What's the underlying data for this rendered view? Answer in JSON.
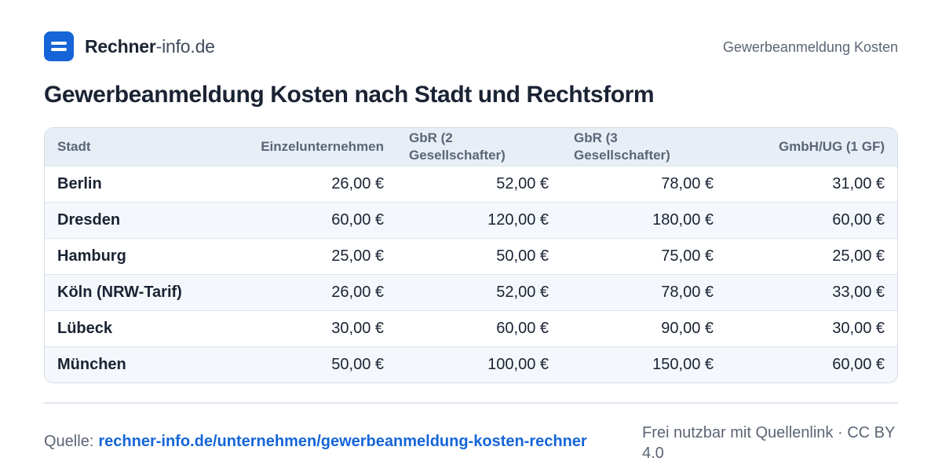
{
  "header": {
    "logo_strong": "Rechner",
    "logo_light": "-info.de",
    "page_label": "Gewerbeanmeldung Kosten"
  },
  "title": "Gewerbeanmeldung Kosten nach Stadt und Rechtsform",
  "table": {
    "columns": [
      "Stadt",
      "Einzelunternehmen",
      "GbR (2 Gesellschafter)",
      "GbR (3 Gesellschafter)",
      "GmbH/UG (1 GF)"
    ],
    "rows": [
      [
        "Berlin",
        "26,00 €",
        "52,00 €",
        "78,00 €",
        "31,00 €"
      ],
      [
        "Dresden",
        "60,00 €",
        "120,00 €",
        "180,00 €",
        "60,00 €"
      ],
      [
        "Hamburg",
        "25,00 €",
        "50,00 €",
        "75,00 €",
        "25,00 €"
      ],
      [
        "Köln (NRW-Tarif)",
        "26,00 €",
        "52,00 €",
        "78,00 €",
        "33,00 €"
      ],
      [
        "Lübeck",
        "30,00 €",
        "60,00 €",
        "90,00 €",
        "30,00 €"
      ],
      [
        "München",
        "50,00 €",
        "100,00 €",
        "150,00 €",
        "60,00 €"
      ]
    ]
  },
  "footer": {
    "source_label": "Quelle:",
    "source_link": "rechner-info.de/unternehmen/gewerbeanmeldung-kosten-rechner",
    "license": "Frei nutzbar mit Quellenlink · CC BY 4.0"
  },
  "colors": {
    "accent": "#1565d8",
    "text": "#1a2333",
    "muted": "#5b6575",
    "header_bg": "#e8eef6",
    "row_alt": "#f4f7fb"
  },
  "icons": {
    "logo": "rechner-logo-icon"
  }
}
